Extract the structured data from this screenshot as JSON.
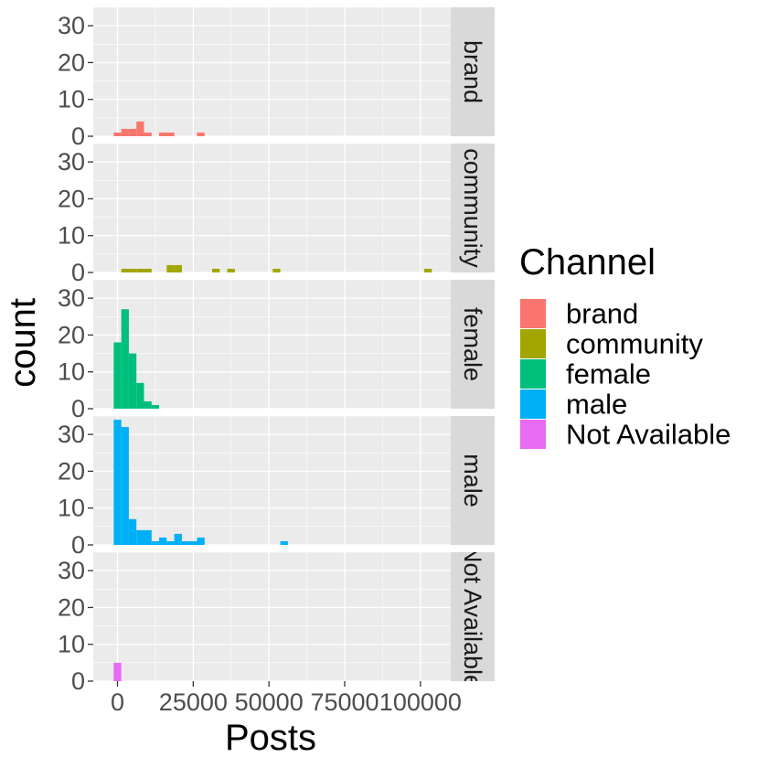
{
  "chart_data": {
    "type": "bar",
    "subtype": "faceted-histogram",
    "xlabel": "Posts",
    "ylabel": "count",
    "xlim": [
      -8000,
      110000
    ],
    "ylim": [
      0,
      35
    ],
    "x_ticks": [
      0,
      25000,
      50000,
      75000,
      100000
    ],
    "x_tick_labels": [
      "0",
      "25000",
      "50000",
      "75000",
      "100000"
    ],
    "y_ticks": [
      0,
      10,
      20,
      30
    ],
    "y_tick_labels": [
      "0",
      "10",
      "20",
      "30"
    ],
    "bin_width": 2500,
    "grid": true,
    "legend": {
      "title": "Channel",
      "position": "right",
      "entries": [
        {
          "label": "brand",
          "color": "#F8766D"
        },
        {
          "label": "community",
          "color": "#A3A500"
        },
        {
          "label": "female",
          "color": "#00BF7D"
        },
        {
          "label": "male",
          "color": "#00B0F6"
        },
        {
          "label": "Not Available",
          "color": "#E76BF3"
        }
      ]
    },
    "panels": [
      {
        "strip": "brand",
        "color": "#F8766D",
        "bins": [
          {
            "x": 0,
            "count": 1
          },
          {
            "x": 2500,
            "count": 2
          },
          {
            "x": 5000,
            "count": 2
          },
          {
            "x": 7500,
            "count": 4
          },
          {
            "x": 10000,
            "count": 1
          },
          {
            "x": 15000,
            "count": 1
          },
          {
            "x": 17500,
            "count": 1
          },
          {
            "x": 27500,
            "count": 1
          }
        ]
      },
      {
        "strip": "community",
        "color": "#A3A500",
        "bins": [
          {
            "x": 2500,
            "count": 1
          },
          {
            "x": 5000,
            "count": 1
          },
          {
            "x": 7500,
            "count": 1
          },
          {
            "x": 10000,
            "count": 1
          },
          {
            "x": 17500,
            "count": 2
          },
          {
            "x": 20000,
            "count": 2
          },
          {
            "x": 32500,
            "count": 1
          },
          {
            "x": 37500,
            "count": 1
          },
          {
            "x": 52500,
            "count": 1
          },
          {
            "x": 102500,
            "count": 1
          }
        ]
      },
      {
        "strip": "female",
        "color": "#00BF7D",
        "bins": [
          {
            "x": 0,
            "count": 18
          },
          {
            "x": 2500,
            "count": 27
          },
          {
            "x": 5000,
            "count": 15
          },
          {
            "x": 7500,
            "count": 7
          },
          {
            "x": 10000,
            "count": 2
          },
          {
            "x": 12500,
            "count": 1
          }
        ]
      },
      {
        "strip": "male",
        "color": "#00B0F6",
        "bins": [
          {
            "x": 0,
            "count": 34
          },
          {
            "x": 2500,
            "count": 32
          },
          {
            "x": 5000,
            "count": 7
          },
          {
            "x": 7500,
            "count": 4
          },
          {
            "x": 10000,
            "count": 4
          },
          {
            "x": 12500,
            "count": 1
          },
          {
            "x": 15000,
            "count": 2
          },
          {
            "x": 17500,
            "count": 1
          },
          {
            "x": 20000,
            "count": 3
          },
          {
            "x": 22500,
            "count": 1
          },
          {
            "x": 25000,
            "count": 1
          },
          {
            "x": 27500,
            "count": 2
          },
          {
            "x": 55000,
            "count": 1
          }
        ]
      },
      {
        "strip": "Not Available",
        "color": "#E76BF3",
        "bins": [
          {
            "x": 0,
            "count": 5
          }
        ]
      }
    ]
  },
  "colors": {
    "panel_background": "#EBEBEB",
    "grid_major": "#FFFFFF",
    "strip_background": "#D9D9D9"
  }
}
